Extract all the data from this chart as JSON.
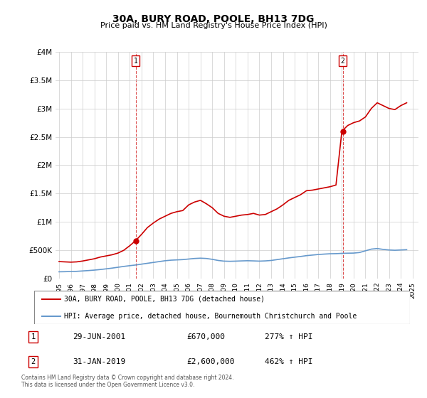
{
  "title": "30A, BURY ROAD, POOLE, BH13 7DG",
  "subtitle": "Price paid vs. HM Land Registry's House Price Index (HPI)",
  "legend_line1": "30A, BURY ROAD, POOLE, BH13 7DG (detached house)",
  "legend_line2": "HPI: Average price, detached house, Bournemouth Christchurch and Poole",
  "annotation1_label": "1",
  "annotation1_date": "29-JUN-2001",
  "annotation1_price": "£670,000",
  "annotation1_hpi": "277% ↑ HPI",
  "annotation2_label": "2",
  "annotation2_date": "31-JAN-2019",
  "annotation2_price": "£2,600,000",
  "annotation2_hpi": "462% ↑ HPI",
  "footnote": "Contains HM Land Registry data © Crown copyright and database right 2024.\nThis data is licensed under the Open Government Licence v3.0.",
  "ylim": [
    0,
    4000000
  ],
  "yticks": [
    0,
    500000,
    1000000,
    1500000,
    2000000,
    2500000,
    3000000,
    3500000,
    4000000
  ],
  "ytick_labels": [
    "£0",
    "£500K",
    "£1M",
    "£1.5M",
    "£2M",
    "£2.5M",
    "£3M",
    "£3.5M",
    "£4M"
  ],
  "xlim_start": 1995.0,
  "xlim_end": 2025.5,
  "red_color": "#cc0000",
  "blue_color": "#6699cc",
  "marker1_x": 2001.5,
  "marker1_y": 670000,
  "marker2_x": 2019.08,
  "marker2_y": 2600000,
  "red_x": [
    1995.0,
    1995.5,
    1996.0,
    1996.5,
    1997.0,
    1997.5,
    1998.0,
    1998.5,
    1999.0,
    1999.5,
    2000.0,
    2000.5,
    2001.0,
    2001.5,
    2002.0,
    2002.5,
    2003.0,
    2003.5,
    2004.0,
    2004.5,
    2005.0,
    2005.5,
    2006.0,
    2006.5,
    2007.0,
    2007.5,
    2008.0,
    2008.5,
    2009.0,
    2009.5,
    2010.0,
    2010.5,
    2011.0,
    2011.5,
    2012.0,
    2012.5,
    2013.0,
    2013.5,
    2014.0,
    2014.5,
    2015.0,
    2015.5,
    2016.0,
    2016.5,
    2017.0,
    2017.5,
    2018.0,
    2018.5,
    2019.0,
    2019.5,
    2020.0,
    2020.5,
    2021.0,
    2021.5,
    2022.0,
    2022.5,
    2023.0,
    2023.5,
    2024.0,
    2024.5
  ],
  "red_y": [
    300000,
    295000,
    290000,
    295000,
    310000,
    330000,
    350000,
    380000,
    400000,
    420000,
    450000,
    500000,
    580000,
    670000,
    780000,
    900000,
    980000,
    1050000,
    1100000,
    1150000,
    1180000,
    1200000,
    1300000,
    1350000,
    1380000,
    1320000,
    1250000,
    1150000,
    1100000,
    1080000,
    1100000,
    1120000,
    1130000,
    1150000,
    1120000,
    1130000,
    1180000,
    1230000,
    1300000,
    1380000,
    1430000,
    1480000,
    1550000,
    1560000,
    1580000,
    1600000,
    1620000,
    1650000,
    2600000,
    2700000,
    2750000,
    2780000,
    2850000,
    3000000,
    3100000,
    3050000,
    3000000,
    2980000,
    3050000,
    3100000
  ],
  "blue_x": [
    1995.0,
    1995.5,
    1996.0,
    1996.5,
    1997.0,
    1997.5,
    1998.0,
    1998.5,
    1999.0,
    1999.5,
    2000.0,
    2000.5,
    2001.0,
    2001.5,
    2002.0,
    2002.5,
    2003.0,
    2003.5,
    2004.0,
    2004.5,
    2005.0,
    2005.5,
    2006.0,
    2006.5,
    2007.0,
    2007.5,
    2008.0,
    2008.5,
    2009.0,
    2009.5,
    2010.0,
    2010.5,
    2011.0,
    2011.5,
    2012.0,
    2012.5,
    2013.0,
    2013.5,
    2014.0,
    2014.5,
    2015.0,
    2015.5,
    2016.0,
    2016.5,
    2017.0,
    2017.5,
    2018.0,
    2018.5,
    2019.0,
    2019.5,
    2020.0,
    2020.5,
    2021.0,
    2021.5,
    2022.0,
    2022.5,
    2023.0,
    2023.5,
    2024.0,
    2024.5
  ],
  "blue_y": [
    120000,
    122000,
    125000,
    128000,
    135000,
    142000,
    150000,
    160000,
    172000,
    185000,
    200000,
    215000,
    228000,
    240000,
    255000,
    270000,
    285000,
    300000,
    315000,
    325000,
    330000,
    335000,
    345000,
    355000,
    360000,
    355000,
    340000,
    320000,
    308000,
    305000,
    308000,
    312000,
    315000,
    312000,
    308000,
    312000,
    320000,
    335000,
    350000,
    365000,
    378000,
    390000,
    405000,
    415000,
    425000,
    432000,
    438000,
    440000,
    445000,
    448000,
    450000,
    460000,
    490000,
    520000,
    530000,
    515000,
    505000,
    500000,
    505000,
    510000
  ]
}
